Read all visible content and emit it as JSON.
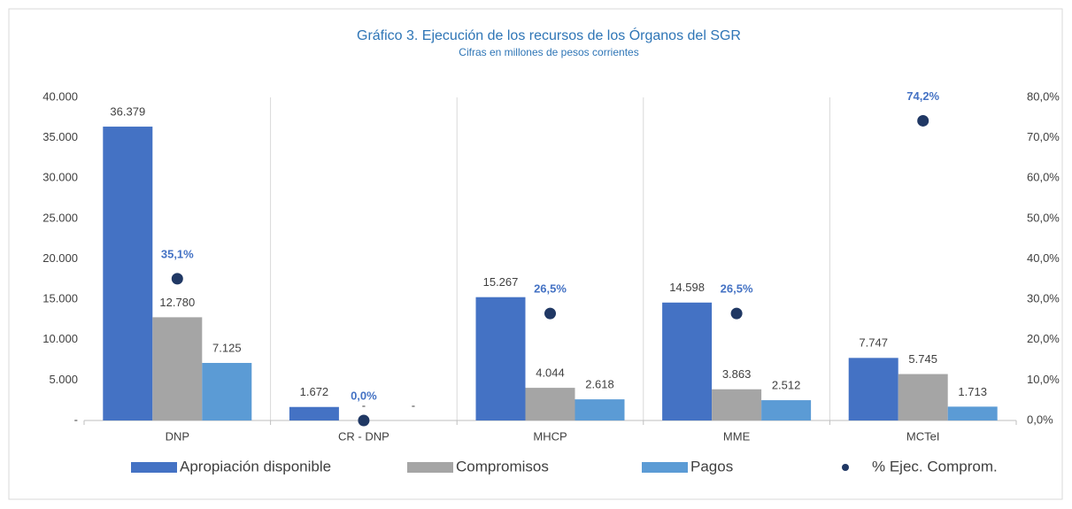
{
  "chart_data": {
    "type": "bar",
    "title": "Gráfico 3. Ejecución de los recursos de los Órganos del SGR",
    "subtitle": "Cifras en millones de pesos corrientes",
    "categories": [
      "DNP",
      "CR - DNP",
      "MHCP",
      "MME",
      "MCTeI"
    ],
    "series": [
      {
        "name": "Apropiación disponible",
        "color": "#4472c4",
        "values": [
          36379,
          1672,
          15267,
          14598,
          7747
        ],
        "value_labels": [
          "36.379",
          "1.672",
          "15.267",
          "14.598",
          "7.747"
        ]
      },
      {
        "name": "Compromisos",
        "color": "#a5a5a5",
        "values": [
          12780,
          0,
          4044,
          3863,
          5745
        ],
        "value_labels": [
          "12.780",
          "-",
          "4.044",
          "3.863",
          "5.745"
        ]
      },
      {
        "name": "Pagos",
        "color": "#5b9bd5",
        "values": [
          7125,
          0,
          2618,
          2512,
          1713
        ],
        "value_labels": [
          "7.125",
          "-",
          "2.618",
          "2.512",
          "1.713"
        ]
      },
      {
        "name": "% Ejec. Comprom.",
        "color": "#203864",
        "type": "scatter",
        "axis": "y2",
        "values": [
          35.1,
          0.0,
          26.5,
          26.5,
          74.2
        ],
        "value_labels": [
          "35,1%",
          "0,0%",
          "26,5%",
          "26,5%",
          "74,2%"
        ]
      }
    ],
    "ylim": [
      0,
      40000
    ],
    "yticks": [
      {
        "value": 0,
        "label": "-"
      },
      {
        "value": 5000,
        "label": "5.000"
      },
      {
        "value": 10000,
        "label": "10.000"
      },
      {
        "value": 15000,
        "label": "15.000"
      },
      {
        "value": 20000,
        "label": "20.000"
      },
      {
        "value": 25000,
        "label": "25.000"
      },
      {
        "value": 30000,
        "label": "30.000"
      },
      {
        "value": 35000,
        "label": "35.000"
      },
      {
        "value": 40000,
        "label": "40.000"
      }
    ],
    "y2lim": [
      0,
      80
    ],
    "y2ticks": [
      {
        "value": 0,
        "label": "0,0%"
      },
      {
        "value": 10,
        "label": "10,0%"
      },
      {
        "value": 20,
        "label": "20,0%"
      },
      {
        "value": 30,
        "label": "30,0%"
      },
      {
        "value": 40,
        "label": "40,0%"
      },
      {
        "value": 50,
        "label": "50,0%"
      },
      {
        "value": 60,
        "label": "60,0%"
      },
      {
        "value": 70,
        "label": "70,0%"
      },
      {
        "value": 80,
        "label": "80,0%"
      }
    ],
    "legend": "bottom"
  }
}
